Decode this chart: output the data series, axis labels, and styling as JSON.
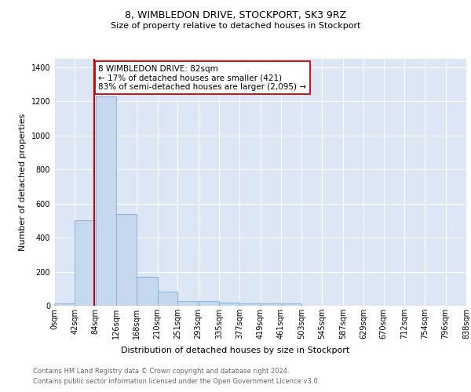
{
  "title1": "8, WIMBLEDON DRIVE, STOCKPORT, SK3 9RZ",
  "title2": "Size of property relative to detached houses in Stockport",
  "xlabel": "Distribution of detached houses by size in Stockport",
  "ylabel": "Number of detached properties",
  "bar_color": "#c5d8ee",
  "bar_edge_color": "#7aadd4",
  "bg_color": "#dce6f5",
  "grid_color": "#ffffff",
  "annotation_line_color": "#cc0000",
  "annotation_text": "8 WIMBLEDON DRIVE: 82sqm\n← 17% of detached houses are smaller (421)\n83% of semi-detached houses are larger (2,095) →",
  "footer1": "Contains HM Land Registry data © Crown copyright and database right 2024.",
  "footer2": "Contains public sector information licensed under the Open Government Licence v3.0.",
  "bins": [
    0,
    42,
    84,
    126,
    168,
    210,
    251,
    293,
    335,
    377,
    419,
    461,
    503,
    545,
    587,
    629,
    670,
    712,
    754,
    796,
    838
  ],
  "counts": [
    12,
    500,
    1230,
    540,
    170,
    85,
    28,
    27,
    18,
    15,
    12,
    12,
    0,
    0,
    0,
    0,
    0,
    0,
    0,
    0
  ],
  "property_size": 82,
  "ylim": [
    0,
    1450
  ],
  "xlim_min": 0,
  "xlim_max": 838,
  "yticks": [
    0,
    200,
    400,
    600,
    800,
    1000,
    1200,
    1400
  ],
  "title1_fontsize": 9,
  "title2_fontsize": 8,
  "ylabel_fontsize": 8,
  "xlabel_fontsize": 8,
  "tick_fontsize": 7,
  "footer_fontsize": 6,
  "annot_fontsize": 7.5
}
